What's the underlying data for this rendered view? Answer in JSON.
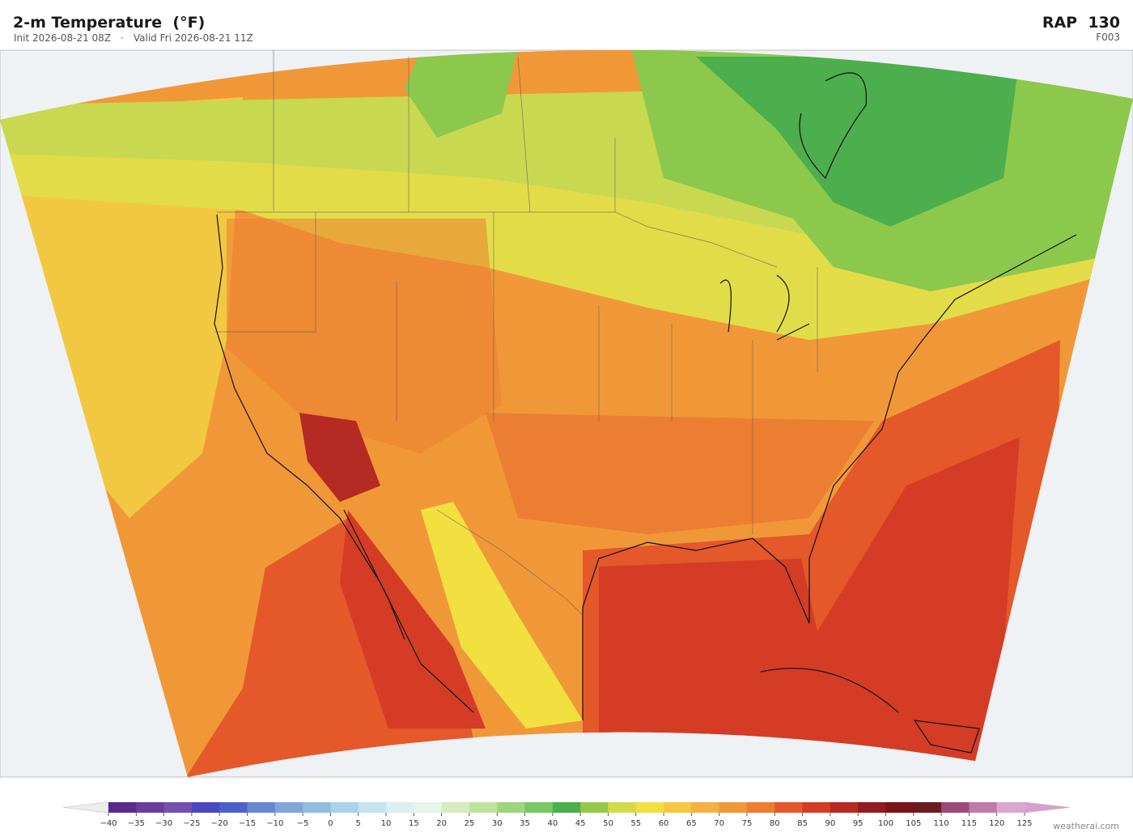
{
  "header": {
    "title": "2-m Temperature  (°F)",
    "init": "Init 2026-08-21 08Z",
    "separator": "·",
    "valid": "Valid Fri 2026-08-21 11Z",
    "model": "RAP  130",
    "forecast_hour": "F003"
  },
  "colorbar": {
    "ticks": [
      {
        "value": -40,
        "label": "−40"
      },
      {
        "value": -35,
        "label": "−35"
      },
      {
        "value": -30,
        "label": "−30"
      },
      {
        "value": -25,
        "label": "−25"
      },
      {
        "value": -20,
        "label": "−20"
      },
      {
        "value": -15,
        "label": "−15"
      },
      {
        "value": -10,
        "label": "−10"
      },
      {
        "value": -5,
        "label": "−5"
      },
      0,
      5,
      10,
      15,
      20,
      25,
      30,
      35,
      40,
      45,
      50,
      55,
      60,
      65,
      70,
      75,
      80,
      85,
      90,
      95,
      100,
      105,
      110,
      115,
      120,
      125
    ],
    "colors": [
      "#5b2a8c",
      "#6a3d9a",
      "#7450b0",
      "#4848c0",
      "#4a62c8",
      "#6688d0",
      "#7fa8d8",
      "#8fbde0",
      "#a9d4e8",
      "#c4e4ef",
      "#dceff2",
      "#e6f5e6",
      "#d4ecc0",
      "#bde39c",
      "#9cd67c",
      "#78c864",
      "#4cae4c",
      "#96c84c",
      "#d2dc48",
      "#f0e040",
      "#f5c842",
      "#f4b040",
      "#f09838",
      "#ec7e32",
      "#e4582a",
      "#d43c26",
      "#b52a22",
      "#921c20",
      "#7a1418",
      "#6e1a20",
      "#9c4a78",
      "#c07aaa",
      "#d8a8d0"
    ],
    "under_color": "#eeeeee",
    "over_color": "#d8a0d0"
  },
  "footer": {
    "credit": "weatherai.com"
  }
}
